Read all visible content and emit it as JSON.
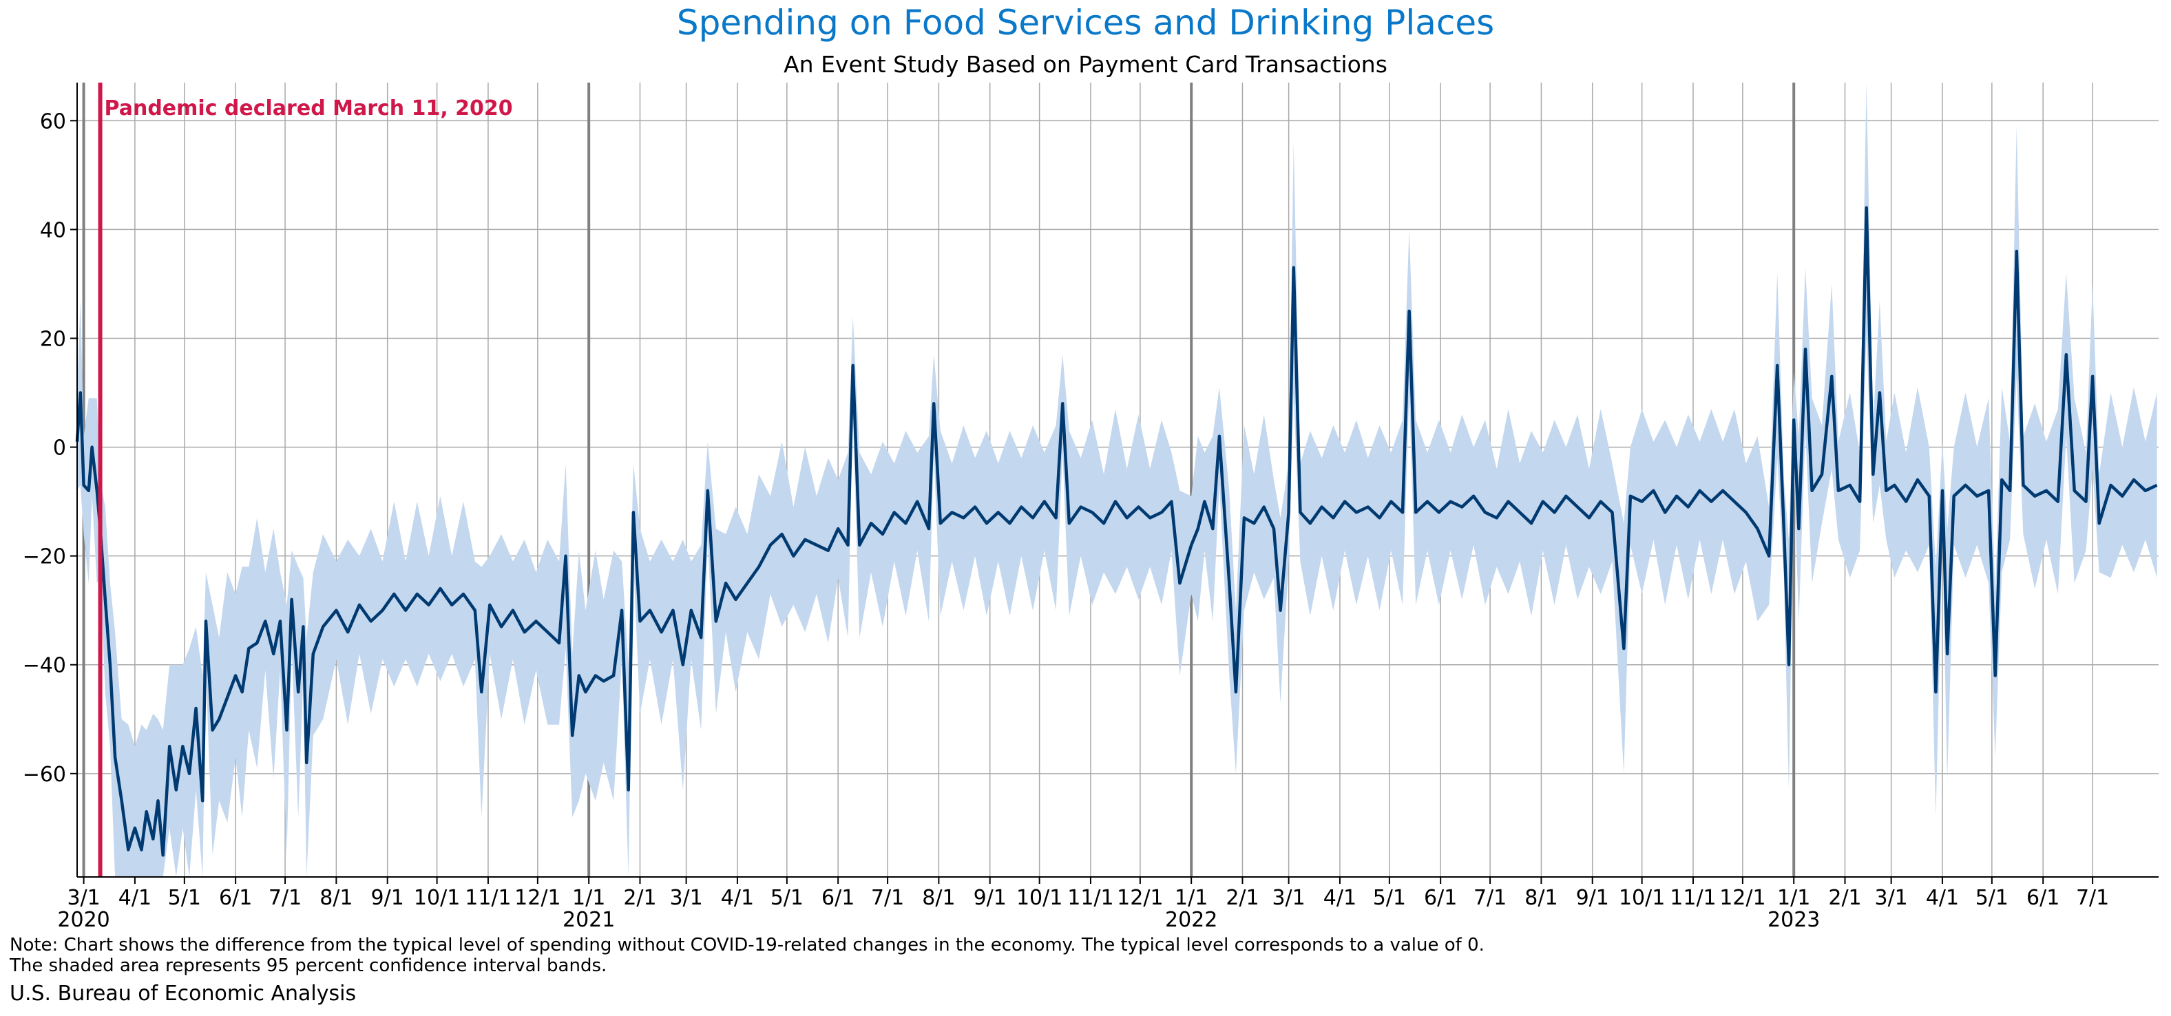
{
  "title": "Spending on Food Services and Drinking Places",
  "subtitle": "An Event Study Based on Payment Card Transactions",
  "note_line1": "Note: Chart shows the difference from the typical level of spending without COVID-19-related changes in the economy. The typical level corresponds to a value of 0.",
  "note_line2": "The shaded area represents 95 percent confidence interval bands.",
  "source": "U.S. Bureau of Economic Analysis",
  "colors": {
    "title": "#0a78c8",
    "line": "#003a70",
    "band": "#c3d7ef",
    "annotation": "#d0174a",
    "grid": "#a9a9a9",
    "year_line": "#808080"
  },
  "chart_data": {
    "type": "line",
    "title": "Spending on Food Services and Drinking Places",
    "subtitle": "An Event Study Based on Payment Card Transactions",
    "xlabel": "",
    "ylabel": "",
    "xlim": [
      "2020-02-26",
      "2023-08-10"
    ],
    "ylim": [
      -79,
      67
    ],
    "yticks": [
      60,
      40,
      20,
      0,
      -20,
      -40,
      -60
    ],
    "ytick_labels": [
      "60",
      "40",
      "20",
      "0",
      "−20",
      "−40",
      "−60"
    ],
    "month_ticks": [
      {
        "date": "2020-03-01",
        "label": "3/1",
        "year": "2020"
      },
      {
        "date": "2020-04-01",
        "label": "4/1"
      },
      {
        "date": "2020-05-01",
        "label": "5/1"
      },
      {
        "date": "2020-06-01",
        "label": "6/1"
      },
      {
        "date": "2020-07-01",
        "label": "7/1"
      },
      {
        "date": "2020-08-01",
        "label": "8/1"
      },
      {
        "date": "2020-09-01",
        "label": "9/1"
      },
      {
        "date": "2020-10-01",
        "label": "10/1"
      },
      {
        "date": "2020-11-01",
        "label": "11/1"
      },
      {
        "date": "2020-12-01",
        "label": "12/1"
      },
      {
        "date": "2021-01-01",
        "label": "1/1",
        "year": "2021"
      },
      {
        "date": "2021-02-01",
        "label": "2/1"
      },
      {
        "date": "2021-03-01",
        "label": "3/1"
      },
      {
        "date": "2021-04-01",
        "label": "4/1"
      },
      {
        "date": "2021-05-01",
        "label": "5/1"
      },
      {
        "date": "2021-06-01",
        "label": "6/1"
      },
      {
        "date": "2021-07-01",
        "label": "7/1"
      },
      {
        "date": "2021-08-01",
        "label": "8/1"
      },
      {
        "date": "2021-09-01",
        "label": "9/1"
      },
      {
        "date": "2021-10-01",
        "label": "10/1"
      },
      {
        "date": "2021-11-01",
        "label": "11/1"
      },
      {
        "date": "2021-12-01",
        "label": "12/1"
      },
      {
        "date": "2022-01-01",
        "label": "1/1",
        "year": "2022"
      },
      {
        "date": "2022-02-01",
        "label": "2/1"
      },
      {
        "date": "2022-03-01",
        "label": "3/1"
      },
      {
        "date": "2022-04-01",
        "label": "4/1"
      },
      {
        "date": "2022-05-01",
        "label": "5/1"
      },
      {
        "date": "2022-06-01",
        "label": "6/1"
      },
      {
        "date": "2022-07-01",
        "label": "7/1"
      },
      {
        "date": "2022-08-01",
        "label": "8/1"
      },
      {
        "date": "2022-09-01",
        "label": "9/1"
      },
      {
        "date": "2022-10-01",
        "label": "10/1"
      },
      {
        "date": "2022-11-01",
        "label": "11/1"
      },
      {
        "date": "2022-12-01",
        "label": "12/1"
      },
      {
        "date": "2023-01-01",
        "label": "1/1",
        "year": "2023"
      },
      {
        "date": "2023-02-01",
        "label": "2/1"
      },
      {
        "date": "2023-03-01",
        "label": "3/1"
      },
      {
        "date": "2023-04-01",
        "label": "4/1"
      },
      {
        "date": "2023-05-01",
        "label": "5/1"
      },
      {
        "date": "2023-06-01",
        "label": "6/1"
      },
      {
        "date": "2023-07-01",
        "label": "7/1"
      }
    ],
    "grid": true,
    "annotation": {
      "date": "2020-03-11",
      "text": "Pandemic declared March 11, 2020"
    },
    "series": [
      {
        "band": "95 percent confidence interval",
        "points": [
          [
            "2020-02-26",
            1
          ],
          [
            "2020-02-28",
            10
          ],
          [
            "2020-03-01",
            -7
          ],
          [
            "2020-03-04",
            -8
          ],
          [
            "2020-03-06",
            0
          ],
          [
            "2020-03-09",
            -8
          ],
          [
            "2020-03-11",
            -15
          ],
          [
            "2020-03-14",
            -28
          ],
          [
            "2020-03-17",
            -40
          ],
          [
            "2020-03-20",
            -57
          ],
          [
            "2020-03-24",
            -65
          ],
          [
            "2020-03-28",
            -74
          ],
          [
            "2020-04-01",
            -70
          ],
          [
            "2020-04-05",
            -74
          ],
          [
            "2020-04-08",
            -67
          ],
          [
            "2020-04-12",
            -72
          ],
          [
            "2020-04-15",
            -65
          ],
          [
            "2020-04-18",
            -75
          ],
          [
            "2020-04-22",
            -55
          ],
          [
            "2020-04-26",
            -63
          ],
          [
            "2020-04-30",
            -55
          ],
          [
            "2020-05-04",
            -60
          ],
          [
            "2020-05-08",
            -48
          ],
          [
            "2020-05-12",
            -65
          ],
          [
            "2020-05-14",
            -32
          ],
          [
            "2020-05-18",
            -52
          ],
          [
            "2020-05-22",
            -50
          ],
          [
            "2020-05-27",
            -46
          ],
          [
            "2020-06-01",
            -42
          ],
          [
            "2020-06-05",
            -45
          ],
          [
            "2020-06-09",
            -37
          ],
          [
            "2020-06-14",
            -36
          ],
          [
            "2020-06-19",
            -32
          ],
          [
            "2020-06-24",
            -38
          ],
          [
            "2020-06-28",
            -32
          ],
          [
            "2020-07-02",
            -52
          ],
          [
            "2020-07-05",
            -28
          ],
          [
            "2020-07-09",
            -45
          ],
          [
            "2020-07-12",
            -33
          ],
          [
            "2020-07-14",
            -58
          ],
          [
            "2020-07-18",
            -38
          ],
          [
            "2020-07-24",
            -33
          ],
          [
            "2020-08-01",
            -30
          ],
          [
            "2020-08-08",
            -34
          ],
          [
            "2020-08-15",
            -29
          ],
          [
            "2020-08-22",
            -32
          ],
          [
            "2020-08-29",
            -30
          ],
          [
            "2020-09-05",
            -27
          ],
          [
            "2020-09-12",
            -30
          ],
          [
            "2020-09-19",
            -27
          ],
          [
            "2020-09-26",
            -29
          ],
          [
            "2020-10-03",
            -26
          ],
          [
            "2020-10-10",
            -29
          ],
          [
            "2020-10-17",
            -27
          ],
          [
            "2020-10-24",
            -30
          ],
          [
            "2020-10-28",
            -45
          ],
          [
            "2020-11-02",
            -29
          ],
          [
            "2020-11-09",
            -33
          ],
          [
            "2020-11-16",
            -30
          ],
          [
            "2020-11-23",
            -34
          ],
          [
            "2020-11-30",
            -32
          ],
          [
            "2020-12-07",
            -34
          ],
          [
            "2020-12-14",
            -36
          ],
          [
            "2020-12-18",
            -20
          ],
          [
            "2020-12-22",
            -53
          ],
          [
            "2020-12-26",
            -42
          ],
          [
            "2020-12-30",
            -45
          ],
          [
            "2021-01-05",
            -42
          ],
          [
            "2021-01-10",
            -43
          ],
          [
            "2021-01-16",
            -42
          ],
          [
            "2021-01-21",
            -30
          ],
          [
            "2021-01-25",
            -63
          ],
          [
            "2021-01-28",
            -12
          ],
          [
            "2021-02-01",
            -32
          ],
          [
            "2021-02-07",
            -30
          ],
          [
            "2021-02-14",
            -34
          ],
          [
            "2021-02-21",
            -30
          ],
          [
            "2021-02-27",
            -40
          ],
          [
            "2021-03-04",
            -30
          ],
          [
            "2021-03-10",
            -35
          ],
          [
            "2021-03-14",
            -8
          ],
          [
            "2021-03-19",
            -32
          ],
          [
            "2021-03-25",
            -25
          ],
          [
            "2021-03-31",
            -28
          ],
          [
            "2021-04-07",
            -25
          ],
          [
            "2021-04-14",
            -22
          ],
          [
            "2021-04-21",
            -18
          ],
          [
            "2021-04-28",
            -16
          ],
          [
            "2021-05-05",
            -20
          ],
          [
            "2021-05-12",
            -17
          ],
          [
            "2021-05-19",
            -18
          ],
          [
            "2021-05-26",
            -19
          ],
          [
            "2021-06-01",
            -15
          ],
          [
            "2021-06-07",
            -18
          ],
          [
            "2021-06-10",
            15
          ],
          [
            "2021-06-14",
            -18
          ],
          [
            "2021-06-21",
            -14
          ],
          [
            "2021-06-28",
            -16
          ],
          [
            "2021-07-05",
            -12
          ],
          [
            "2021-07-12",
            -14
          ],
          [
            "2021-07-19",
            -10
          ],
          [
            "2021-07-26",
            -15
          ],
          [
            "2021-07-29",
            8
          ],
          [
            "2021-08-02",
            -14
          ],
          [
            "2021-08-09",
            -12
          ],
          [
            "2021-08-16",
            -13
          ],
          [
            "2021-08-23",
            -11
          ],
          [
            "2021-08-30",
            -14
          ],
          [
            "2021-09-06",
            -12
          ],
          [
            "2021-09-13",
            -14
          ],
          [
            "2021-09-20",
            -11
          ],
          [
            "2021-09-27",
            -13
          ],
          [
            "2021-10-04",
            -10
          ],
          [
            "2021-10-11",
            -13
          ],
          [
            "2021-10-15",
            8
          ],
          [
            "2021-10-19",
            -14
          ],
          [
            "2021-10-26",
            -11
          ],
          [
            "2021-11-02",
            -12
          ],
          [
            "2021-11-09",
            -14
          ],
          [
            "2021-11-16",
            -10
          ],
          [
            "2021-11-23",
            -13
          ],
          [
            "2021-11-30",
            -11
          ],
          [
            "2021-12-07",
            -13
          ],
          [
            "2021-12-14",
            -12
          ],
          [
            "2021-12-20",
            -10
          ],
          [
            "2021-12-25",
            -25
          ],
          [
            "2022-01-01",
            -18
          ],
          [
            "2022-01-05",
            -15
          ],
          [
            "2022-01-09",
            -10
          ],
          [
            "2022-01-14",
            -15
          ],
          [
            "2022-01-18",
            2
          ],
          [
            "2022-01-24",
            -25
          ],
          [
            "2022-01-28",
            -45
          ],
          [
            "2022-02-02",
            -13
          ],
          [
            "2022-02-08",
            -14
          ],
          [
            "2022-02-14",
            -11
          ],
          [
            "2022-02-20",
            -15
          ],
          [
            "2022-02-24",
            -30
          ],
          [
            "2022-03-01",
            -12
          ],
          [
            "2022-03-04",
            33
          ],
          [
            "2022-03-08",
            -12
          ],
          [
            "2022-03-14",
            -14
          ],
          [
            "2022-03-21",
            -11
          ],
          [
            "2022-03-28",
            -13
          ],
          [
            "2022-04-04",
            -10
          ],
          [
            "2022-04-11",
            -12
          ],
          [
            "2022-04-18",
            -11
          ],
          [
            "2022-04-25",
            -13
          ],
          [
            "2022-05-02",
            -10
          ],
          [
            "2022-05-09",
            -12
          ],
          [
            "2022-05-13",
            25
          ],
          [
            "2022-05-17",
            -12
          ],
          [
            "2022-05-24",
            -10
          ],
          [
            "2022-05-31",
            -12
          ],
          [
            "2022-06-07",
            -10
          ],
          [
            "2022-06-14",
            -11
          ],
          [
            "2022-06-21",
            -9
          ],
          [
            "2022-06-28",
            -12
          ],
          [
            "2022-07-05",
            -13
          ],
          [
            "2022-07-12",
            -10
          ],
          [
            "2022-07-19",
            -12
          ],
          [
            "2022-07-26",
            -14
          ],
          [
            "2022-08-02",
            -10
          ],
          [
            "2022-08-09",
            -12
          ],
          [
            "2022-08-16",
            -9
          ],
          [
            "2022-08-23",
            -11
          ],
          [
            "2022-08-30",
            -13
          ],
          [
            "2022-09-06",
            -10
          ],
          [
            "2022-09-13",
            -12
          ],
          [
            "2022-09-20",
            -37
          ],
          [
            "2022-09-24",
            -9
          ],
          [
            "2022-10-01",
            -10
          ],
          [
            "2022-10-08",
            -8
          ],
          [
            "2022-10-15",
            -12
          ],
          [
            "2022-10-22",
            -9
          ],
          [
            "2022-10-29",
            -11
          ],
          [
            "2022-11-05",
            -8
          ],
          [
            "2022-11-12",
            -10
          ],
          [
            "2022-11-19",
            -8
          ],
          [
            "2022-11-26",
            -10
          ],
          [
            "2022-12-03",
            -12
          ],
          [
            "2022-12-10",
            -15
          ],
          [
            "2022-12-17",
            -20
          ],
          [
            "2022-12-22",
            15
          ],
          [
            "2022-12-26",
            -15
          ],
          [
            "2022-12-29",
            -40
          ],
          [
            "2023-01-01",
            5
          ],
          [
            "2023-01-04",
            -15
          ],
          [
            "2023-01-08",
            18
          ],
          [
            "2023-01-12",
            -8
          ],
          [
            "2023-01-18",
            -5
          ],
          [
            "2023-01-24",
            13
          ],
          [
            "2023-01-28",
            -8
          ],
          [
            "2023-02-04",
            -7
          ],
          [
            "2023-02-10",
            -10
          ],
          [
            "2023-02-14",
            44
          ],
          [
            "2023-02-18",
            -5
          ],
          [
            "2023-02-22",
            10
          ],
          [
            "2023-02-26",
            -8
          ],
          [
            "2023-03-03",
            -7
          ],
          [
            "2023-03-10",
            -10
          ],
          [
            "2023-03-17",
            -6
          ],
          [
            "2023-03-24",
            -9
          ],
          [
            "2023-03-28",
            -45
          ],
          [
            "2023-04-01",
            -8
          ],
          [
            "2023-04-04",
            -38
          ],
          [
            "2023-04-08",
            -9
          ],
          [
            "2023-04-15",
            -7
          ],
          [
            "2023-04-22",
            -9
          ],
          [
            "2023-04-29",
            -8
          ],
          [
            "2023-05-03",
            -42
          ],
          [
            "2023-05-07",
            -6
          ],
          [
            "2023-05-12",
            -8
          ],
          [
            "2023-05-16",
            36
          ],
          [
            "2023-05-20",
            -7
          ],
          [
            "2023-05-27",
            -9
          ],
          [
            "2023-06-03",
            -8
          ],
          [
            "2023-06-10",
            -10
          ],
          [
            "2023-06-15",
            17
          ],
          [
            "2023-06-20",
            -8
          ],
          [
            "2023-06-27",
            -10
          ],
          [
            "2023-07-01",
            13
          ],
          [
            "2023-07-05",
            -14
          ],
          [
            "2023-07-12",
            -7
          ],
          [
            "2023-07-19",
            -9
          ],
          [
            "2023-07-26",
            -6
          ],
          [
            "2023-08-02",
            -8
          ],
          [
            "2023-08-09",
            -7
          ]
        ]
      }
    ]
  }
}
